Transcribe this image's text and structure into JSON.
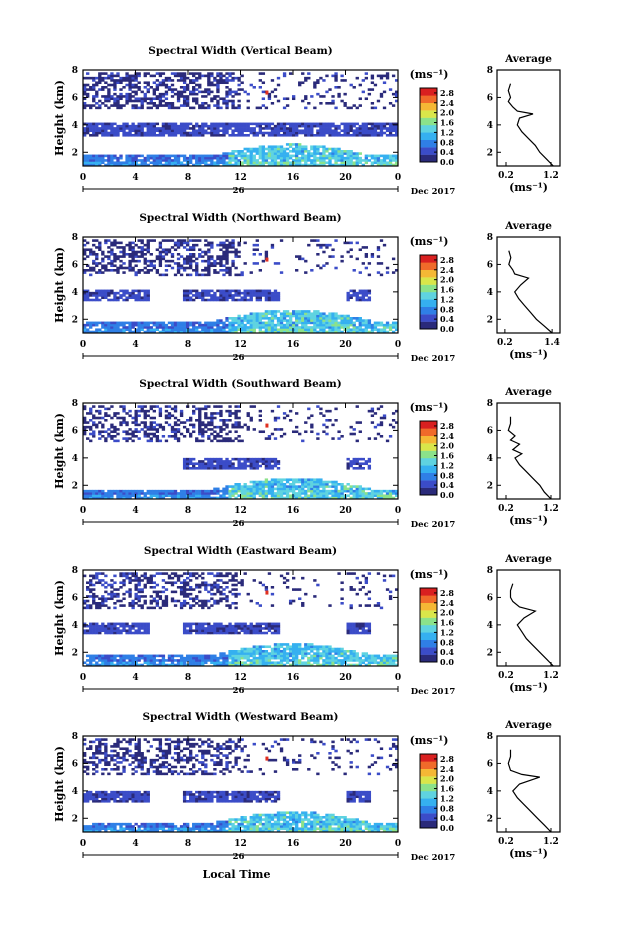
{
  "chart_data": {
    "type": "heatmap",
    "common": {
      "units_label": "(ms⁻¹)",
      "avg_title": "Average",
      "avg_xlabel": "(ms⁻¹)",
      "ylabel": "Height (km)",
      "date_tick": "26",
      "date_label": "Dec 2017",
      "xlabel": "Local Time",
      "x_ticks": [
        "0",
        "4",
        "8",
        "12",
        "16",
        "20",
        "0"
      ],
      "y_ticks": [
        "2",
        "4",
        "6",
        "8"
      ],
      "xlim": [
        0,
        24
      ],
      "ylim": [
        1,
        8
      ],
      "colorbar_ticks": [
        "0.0",
        "0.4",
        "0.8",
        "1.2",
        "1.6",
        "2.0",
        "2.4",
        "2.8"
      ],
      "colorbar_range": [
        0.0,
        3.0
      ],
      "colormap": [
        "#2a2a7a",
        "#3b4cc8",
        "#2f7fe6",
        "#35b0f0",
        "#5fd3e0",
        "#8be28a",
        "#d9e64a",
        "#f5b835",
        "#f06a2a",
        "#d92020"
      ],
      "avg_y_ticks": [
        "2",
        "4",
        "6",
        "8"
      ]
    },
    "panels": [
      {
        "title": "Spectral Width (Vertical Beam)",
        "avg_xticks": [
          "0.2",
          "1.2"
        ],
        "avg_xlim": [
          0.0,
          1.4
        ],
        "avg_profile": {
          "height": [
            1.0,
            1.5,
            2.0,
            2.5,
            3.0,
            3.5,
            4.0,
            4.5,
            4.8,
            5.0,
            5.3,
            5.7,
            6.0,
            6.5,
            7.0
          ],
          "value": [
            1.25,
            1.1,
            0.95,
            0.85,
            0.7,
            0.55,
            0.45,
            0.5,
            0.8,
            0.45,
            0.35,
            0.25,
            0.3,
            0.25,
            0.3
          ]
        }
      },
      {
        "title": "Spectral Width (Northward Beam)",
        "avg_xticks": [
          "0.2",
          "1.4"
        ],
        "avg_xlim": [
          0.0,
          1.6
        ],
        "avg_profile": {
          "height": [
            1.0,
            1.5,
            2.0,
            2.5,
            3.0,
            3.5,
            4.0,
            4.5,
            5.0,
            5.3,
            5.6,
            6.0,
            6.5,
            7.0
          ],
          "value": [
            1.4,
            1.2,
            1.0,
            0.85,
            0.7,
            0.55,
            0.45,
            0.6,
            0.8,
            0.45,
            0.4,
            0.3,
            0.35,
            0.3
          ]
        }
      },
      {
        "title": "Spectral Width (Southward Beam)",
        "avg_xticks": [
          "0.2",
          "1.2"
        ],
        "avg_xlim": [
          0.0,
          1.4
        ],
        "avg_profile": {
          "height": [
            1.0,
            1.5,
            2.0,
            2.5,
            3.0,
            3.5,
            4.0,
            4.3,
            4.6,
            5.0,
            5.3,
            5.6,
            6.0,
            6.5,
            7.0
          ],
          "value": [
            1.2,
            1.05,
            0.95,
            0.8,
            0.65,
            0.5,
            0.4,
            0.55,
            0.35,
            0.5,
            0.3,
            0.4,
            0.25,
            0.3,
            0.3
          ]
        }
      },
      {
        "title": "Spectral Width (Eastward Beam)",
        "avg_xticks": [
          "0.2",
          "1.2"
        ],
        "avg_xlim": [
          0.0,
          1.4
        ],
        "avg_profile": {
          "height": [
            1.0,
            1.5,
            2.0,
            2.5,
            3.0,
            3.5,
            4.0,
            4.5,
            5.0,
            5.3,
            5.7,
            6.0,
            6.5,
            7.0
          ],
          "value": [
            1.25,
            1.1,
            0.95,
            0.8,
            0.65,
            0.55,
            0.45,
            0.6,
            0.85,
            0.5,
            0.35,
            0.3,
            0.3,
            0.35
          ]
        }
      },
      {
        "title": "Spectral Width (Westward Beam)",
        "avg_xticks": [
          "0.2",
          "1.2"
        ],
        "avg_xlim": [
          0.0,
          1.4
        ],
        "avg_profile": {
          "height": [
            1.0,
            1.5,
            2.0,
            2.5,
            3.0,
            3.5,
            4.0,
            4.5,
            5.0,
            5.2,
            5.5,
            6.0,
            6.5,
            7.0
          ],
          "value": [
            1.2,
            1.05,
            0.9,
            0.75,
            0.6,
            0.45,
            0.35,
            0.5,
            0.95,
            0.55,
            0.3,
            0.25,
            0.3,
            0.3
          ]
        }
      }
    ]
  }
}
